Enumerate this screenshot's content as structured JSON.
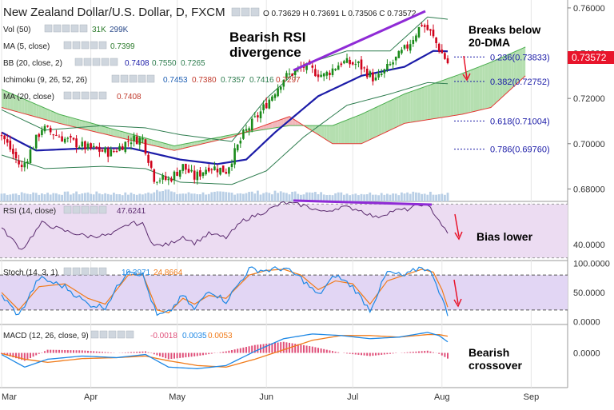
{
  "header": {
    "title": "New Zealand Dollar/U.S. Dollar, D, FXCM",
    "ohlc": "O 0.73629 H 0.73691 L 0.73506 C 0.73572"
  },
  "legends": {
    "vol": {
      "label": "Vol (50)",
      "v1": "31K",
      "v2": "299K"
    },
    "ma5": {
      "label": "MA (5, close)",
      "v1": "0.7399"
    },
    "bb": {
      "label": "BB (20, close, 2)",
      "v1": "0.7408",
      "v2": "0.7550",
      "v3": "0.7265"
    },
    "ichimoku": {
      "label": "Ichimoku (9, 26, 52, 26)",
      "v1": "0.7453",
      "v2": "0.7380",
      "v3": "0.7357",
      "v4": "0.7416",
      "v5": "0.7297"
    },
    "ma20": {
      "label": "MA (20, close)",
      "v1": "0.7408"
    },
    "rsi": {
      "label": "RSI (14, close)",
      "v1": "47.6241"
    },
    "stoch": {
      "label": "Stoch (14, 3, 1)",
      "v1": "10.3971",
      "v2": "24.8664"
    },
    "macd": {
      "label": "MACD (12, 26, close, 9)",
      "v1": "-0.0018",
      "v2": "0.0035",
      "v3": "0.0053"
    }
  },
  "annotations": {
    "divergence_line1": "Bearish RSI",
    "divergence_line2": "divergence",
    "breaks_line1": "Breaks below",
    "breaks_line2": "20-DMA",
    "bias": "Bias lower",
    "crossover_line1": "Bearish",
    "crossover_line2": "crossover"
  },
  "fib_levels": [
    {
      "label": "0.236(0.73833)",
      "value": 0.73833
    },
    {
      "label": "0.382(0.72752)",
      "value": 0.72752
    },
    {
      "label": "0.618(0.71004)",
      "value": 0.71004
    },
    {
      "label": "0.786(0.69760)",
      "value": 0.6976
    }
  ],
  "price_tag": {
    "text": "0.73572",
    "color": "#e8142b"
  },
  "colors": {
    "bull": "#1a8a1a",
    "bear": "#d0021b",
    "ma20": "#1c1ca8",
    "bb": "#2e7d4f",
    "kumo_bull": "#b5dfb0",
    "kumo_bear": "#f2b8bc",
    "rsi": "#5a2a6e",
    "stoch_k": "#1e88e5",
    "stoch_d": "#f07b1a",
    "macd": "#1e88e5",
    "signal": "#f07b1a",
    "hist": "#e0507a",
    "divergence": "#8f2bd6",
    "arrow": "#e8142b"
  },
  "chart_data": {
    "type": "candlestick",
    "ylabel": "",
    "x_axis": {
      "labels": [
        "Mar",
        "Apr",
        "May",
        "Jun",
        "Jul",
        "Aug",
        "Sep"
      ],
      "day_offsets": [
        0,
        31,
        61,
        92,
        122,
        153,
        184
      ]
    },
    "price_axis": {
      "ylim": [
        0.6745,
        0.7635
      ],
      "ticks": [
        0.68,
        0.7,
        0.72,
        0.74,
        0.76
      ],
      "tick_labels": [
        "0.68000",
        "0.70000",
        "0.72000",
        "0.74000",
        "0.76000"
      ]
    },
    "rsi_axis": {
      "ylim": [
        28,
        72
      ],
      "ticks": [
        40
      ],
      "tick_labels": [
        "40.0000"
      ],
      "band": [
        30,
        70
      ]
    },
    "stoch_axis": {
      "ylim": [
        -5,
        105
      ],
      "ticks": [
        0,
        50,
        100
      ],
      "tick_labels": [
        "0.0000",
        "50.0000",
        "100.0000"
      ],
      "band": [
        20,
        80
      ]
    },
    "macd_axis": {
      "ylim": [
        -0.011,
        0.009
      ],
      "ticks": [
        0
      ],
      "tick_labels": [
        "0.0000"
      ]
    },
    "price_keyframes": [
      {
        "day": 0,
        "close": 0.704
      },
      {
        "day": 7,
        "close": 0.689
      },
      {
        "day": 14,
        "close": 0.707
      },
      {
        "day": 22,
        "close": 0.702
      },
      {
        "day": 30,
        "close": 0.698
      },
      {
        "day": 38,
        "close": 0.696
      },
      {
        "day": 45,
        "close": 0.702
      },
      {
        "day": 49,
        "close": 0.702
      },
      {
        "day": 53,
        "close": 0.685
      },
      {
        "day": 58,
        "close": 0.684
      },
      {
        "day": 63,
        "close": 0.69
      },
      {
        "day": 67,
        "close": 0.685
      },
      {
        "day": 72,
        "close": 0.69
      },
      {
        "day": 78,
        "close": 0.688
      },
      {
        "day": 84,
        "close": 0.704
      },
      {
        "day": 90,
        "close": 0.714
      },
      {
        "day": 98,
        "close": 0.729
      },
      {
        "day": 105,
        "close": 0.734
      },
      {
        "day": 112,
        "close": 0.73
      },
      {
        "day": 118,
        "close": 0.736
      },
      {
        "day": 124,
        "close": 0.735
      },
      {
        "day": 130,
        "close": 0.728
      },
      {
        "day": 136,
        "close": 0.736
      },
      {
        "day": 141,
        "close": 0.743
      },
      {
        "day": 146,
        "close": 0.753
      },
      {
        "day": 149,
        "close": 0.749
      },
      {
        "day": 152,
        "close": 0.742
      },
      {
        "day": 155,
        "close": 0.7357
      }
    ],
    "ma20_keyframes": [
      {
        "day": 0,
        "v": 0.705
      },
      {
        "day": 12,
        "v": 0.697
      },
      {
        "day": 30,
        "v": 0.698
      },
      {
        "day": 45,
        "v": 0.698
      },
      {
        "day": 62,
        "v": 0.693
      },
      {
        "day": 75,
        "v": 0.691
      },
      {
        "day": 85,
        "v": 0.693
      },
      {
        "day": 95,
        "v": 0.705
      },
      {
        "day": 110,
        "v": 0.721
      },
      {
        "day": 125,
        "v": 0.73
      },
      {
        "day": 140,
        "v": 0.734
      },
      {
        "day": 150,
        "v": 0.741
      },
      {
        "day": 155,
        "v": 0.7408
      }
    ],
    "bb_upper_keyframes": [
      {
        "day": 0,
        "v": 0.715
      },
      {
        "day": 15,
        "v": 0.706
      },
      {
        "day": 35,
        "v": 0.708
      },
      {
        "day": 50,
        "v": 0.707
      },
      {
        "day": 62,
        "v": 0.704
      },
      {
        "day": 80,
        "v": 0.701
      },
      {
        "day": 92,
        "v": 0.72
      },
      {
        "day": 105,
        "v": 0.735
      },
      {
        "day": 120,
        "v": 0.741
      },
      {
        "day": 135,
        "v": 0.741
      },
      {
        "day": 148,
        "v": 0.756
      },
      {
        "day": 155,
        "v": 0.755
      }
    ],
    "bb_lower_keyframes": [
      {
        "day": 0,
        "v": 0.695
      },
      {
        "day": 15,
        "v": 0.689
      },
      {
        "day": 35,
        "v": 0.69
      },
      {
        "day": 50,
        "v": 0.689
      },
      {
        "day": 62,
        "v": 0.683
      },
      {
        "day": 80,
        "v": 0.682
      },
      {
        "day": 92,
        "v": 0.688
      },
      {
        "day": 105,
        "v": 0.703
      },
      {
        "day": 120,
        "v": 0.717
      },
      {
        "day": 135,
        "v": 0.722
      },
      {
        "day": 148,
        "v": 0.727
      },
      {
        "day": 155,
        "v": 0.7265
      }
    ],
    "kumo_a_keyframes": [
      {
        "day": 0,
        "v": 0.724
      },
      {
        "day": 20,
        "v": 0.713
      },
      {
        "day": 40,
        "v": 0.706
      },
      {
        "day": 60,
        "v": 0.699
      },
      {
        "day": 80,
        "v": 0.704
      },
      {
        "day": 100,
        "v": 0.708
      },
      {
        "day": 115,
        "v": 0.708
      },
      {
        "day": 125,
        "v": 0.713
      },
      {
        "day": 140,
        "v": 0.722
      },
      {
        "day": 160,
        "v": 0.731
      },
      {
        "day": 170,
        "v": 0.736
      },
      {
        "day": 182,
        "v": 0.7427
      }
    ],
    "kumo_b_keyframes": [
      {
        "day": 0,
        "v": 0.716
      },
      {
        "day": 20,
        "v": 0.709
      },
      {
        "day": 40,
        "v": 0.703
      },
      {
        "day": 60,
        "v": 0.697
      },
      {
        "day": 80,
        "v": 0.703
      },
      {
        "day": 100,
        "v": 0.712
      },
      {
        "day": 115,
        "v": 0.7
      },
      {
        "day": 125,
        "v": 0.7
      },
      {
        "day": 140,
        "v": 0.709
      },
      {
        "day": 160,
        "v": 0.713
      },
      {
        "day": 170,
        "v": 0.716
      },
      {
        "day": 182,
        "v": 0.73
      }
    ],
    "rsi_keyframes": [
      {
        "day": 0,
        "v": 52
      },
      {
        "day": 7,
        "v": 36
      },
      {
        "day": 14,
        "v": 56
      },
      {
        "day": 22,
        "v": 50
      },
      {
        "day": 30,
        "v": 46
      },
      {
        "day": 38,
        "v": 47
      },
      {
        "day": 45,
        "v": 56
      },
      {
        "day": 49,
        "v": 55
      },
      {
        "day": 53,
        "v": 39
      },
      {
        "day": 58,
        "v": 40
      },
      {
        "day": 63,
        "v": 46
      },
      {
        "day": 67,
        "v": 41
      },
      {
        "day": 72,
        "v": 48
      },
      {
        "day": 78,
        "v": 45
      },
      {
        "day": 84,
        "v": 58
      },
      {
        "day": 90,
        "v": 63
      },
      {
        "day": 98,
        "v": 71
      },
      {
        "day": 105,
        "v": 69
      },
      {
        "day": 112,
        "v": 64
      },
      {
        "day": 118,
        "v": 68
      },
      {
        "day": 124,
        "v": 66
      },
      {
        "day": 130,
        "v": 60
      },
      {
        "day": 136,
        "v": 65
      },
      {
        "day": 141,
        "v": 66
      },
      {
        "day": 146,
        "v": 70
      },
      {
        "day": 149,
        "v": 67
      },
      {
        "day": 152,
        "v": 58
      },
      {
        "day": 155,
        "v": 47.6
      }
    ],
    "stoch_keyframes": [
      {
        "day": 0,
        "k": 45,
        "d": 50
      },
      {
        "day": 6,
        "k": 10,
        "d": 20
      },
      {
        "day": 13,
        "k": 75,
        "d": 60
      },
      {
        "day": 22,
        "k": 60,
        "d": 65
      },
      {
        "day": 30,
        "k": 30,
        "d": 40
      },
      {
        "day": 36,
        "k": 25,
        "d": 30
      },
      {
        "day": 44,
        "k": 90,
        "d": 80
      },
      {
        "day": 49,
        "k": 80,
        "d": 82
      },
      {
        "day": 54,
        "k": 10,
        "d": 20
      },
      {
        "day": 58,
        "k": 15,
        "d": 15
      },
      {
        "day": 63,
        "k": 45,
        "d": 40
      },
      {
        "day": 67,
        "k": 20,
        "d": 30
      },
      {
        "day": 72,
        "k": 55,
        "d": 45
      },
      {
        "day": 78,
        "k": 35,
        "d": 40
      },
      {
        "day": 86,
        "k": 90,
        "d": 80
      },
      {
        "day": 92,
        "k": 88,
        "d": 88
      },
      {
        "day": 98,
        "k": 92,
        "d": 90
      },
      {
        "day": 104,
        "k": 75,
        "d": 80
      },
      {
        "day": 110,
        "k": 45,
        "d": 55
      },
      {
        "day": 116,
        "k": 80,
        "d": 70
      },
      {
        "day": 122,
        "k": 60,
        "d": 65
      },
      {
        "day": 128,
        "k": 20,
        "d": 30
      },
      {
        "day": 134,
        "k": 85,
        "d": 70
      },
      {
        "day": 140,
        "k": 78,
        "d": 80
      },
      {
        "day": 146,
        "k": 95,
        "d": 90
      },
      {
        "day": 150,
        "k": 80,
        "d": 85
      },
      {
        "day": 153,
        "k": 40,
        "d": 55
      },
      {
        "day": 155,
        "k": 10.4,
        "d": 24.9
      }
    ],
    "macd_keyframes": [
      {
        "day": 0,
        "m": -0.0005,
        "s": -0.0002
      },
      {
        "day": 8,
        "m": -0.0045,
        "s": -0.002
      },
      {
        "day": 16,
        "m": -0.002,
        "s": -0.003
      },
      {
        "day": 28,
        "m": -0.001,
        "s": -0.0018
      },
      {
        "day": 40,
        "m": -0.0015,
        "s": -0.0015
      },
      {
        "day": 50,
        "m": -0.0005,
        "s": -0.001
      },
      {
        "day": 58,
        "m": -0.0045,
        "s": -0.0025
      },
      {
        "day": 68,
        "m": -0.005,
        "s": -0.004
      },
      {
        "day": 78,
        "m": -0.004,
        "s": -0.0045
      },
      {
        "day": 88,
        "m": 0.0005,
        "s": -0.002
      },
      {
        "day": 98,
        "m": 0.0045,
        "s": 0.001
      },
      {
        "day": 108,
        "m": 0.006,
        "s": 0.004
      },
      {
        "day": 118,
        "m": 0.0055,
        "s": 0.0055
      },
      {
        "day": 128,
        "m": 0.0045,
        "s": 0.0055
      },
      {
        "day": 138,
        "m": 0.005,
        "s": 0.005
      },
      {
        "day": 148,
        "m": 0.0065,
        "s": 0.0058
      },
      {
        "day": 152,
        "m": 0.0055,
        "s": 0.0058
      },
      {
        "day": 155,
        "m": 0.0035,
        "s": 0.0053
      }
    ],
    "volume_keyframes": [
      {
        "day": 0,
        "v": 40
      },
      {
        "day": 30,
        "v": 45
      },
      {
        "day": 50,
        "v": 35
      },
      {
        "day": 56,
        "v": 95
      },
      {
        "day": 60,
        "v": 40
      },
      {
        "day": 90,
        "v": 50
      },
      {
        "day": 120,
        "v": 40
      },
      {
        "day": 155,
        "v": 45
      }
    ]
  }
}
